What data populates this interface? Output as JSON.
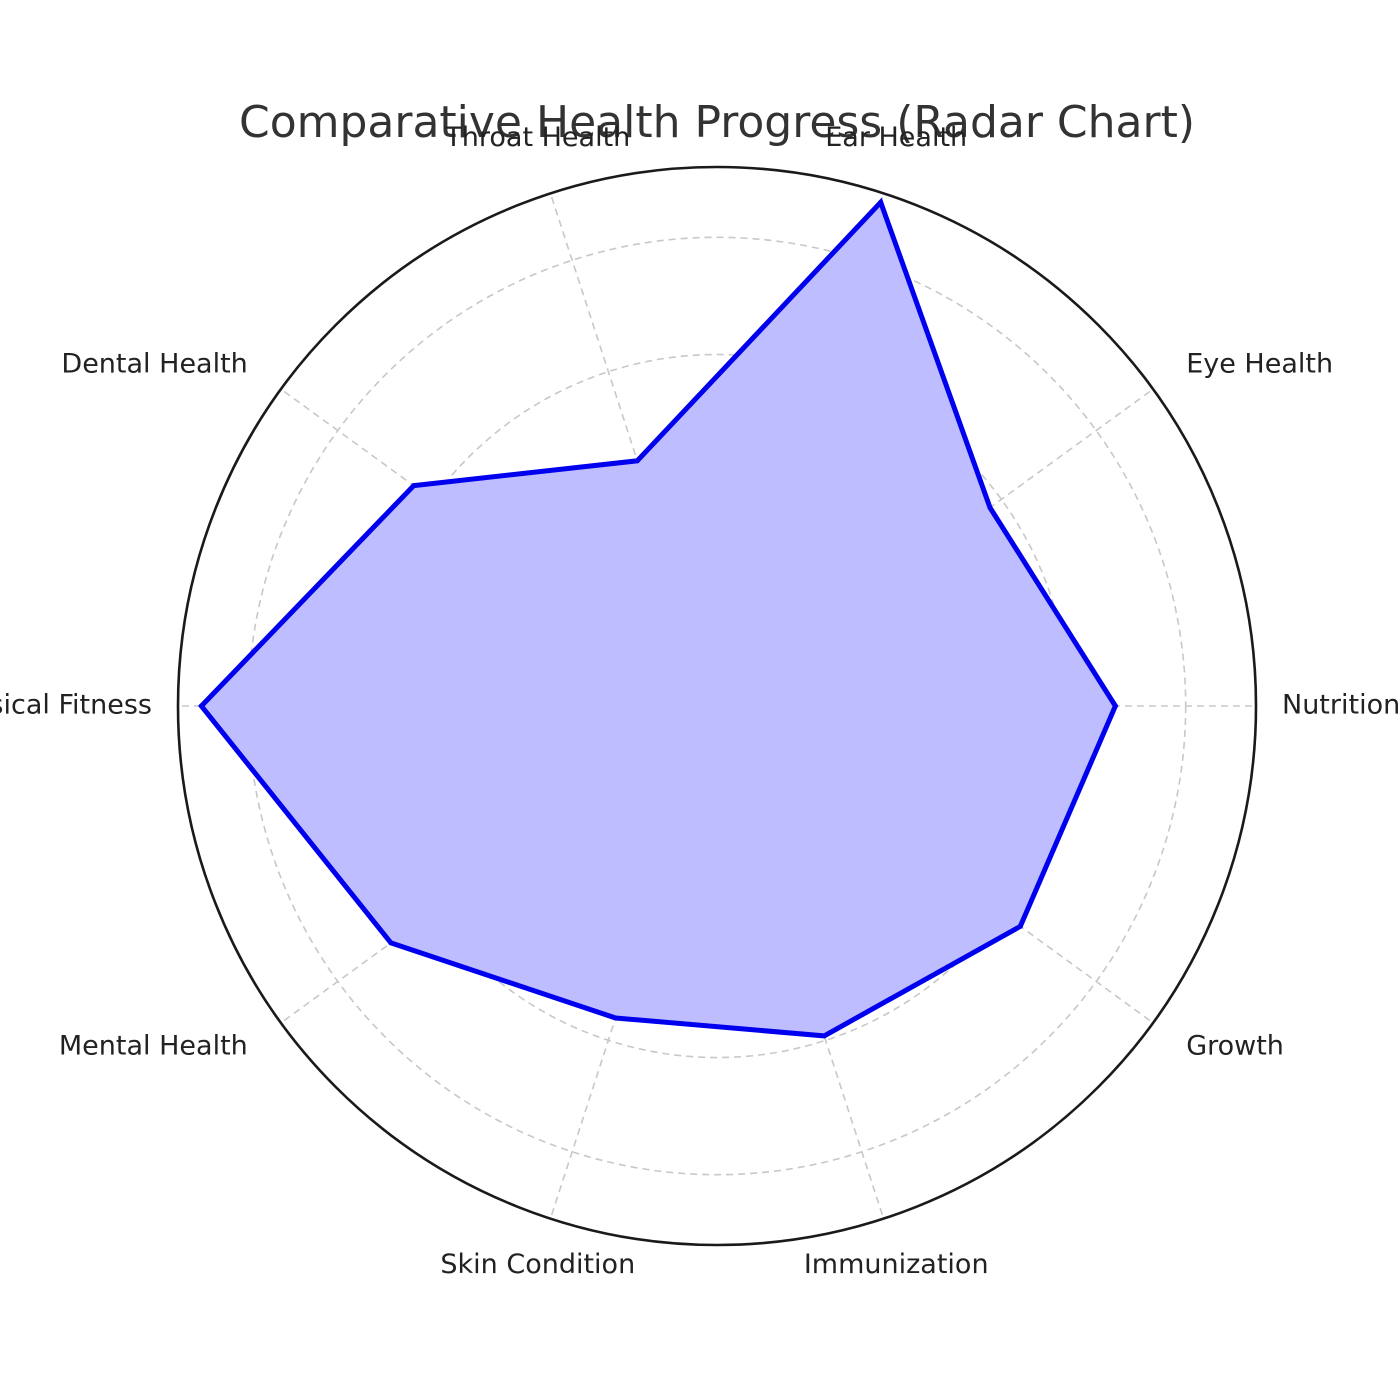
{
  "chart_data": {
    "type": "radar",
    "title": "Comparative Health Progress (Radar Chart)",
    "categories": [
      "Nutrition",
      "Eye Health",
      "Ear Health",
      "Throat Health",
      "Dental Health",
      "Physical Fitness",
      "Mental Health",
      "Skin Condition",
      "Immunization",
      "Growth"
    ],
    "series": [
      {
        "values": [
          85,
          72,
          113,
          55,
          80,
          110,
          86,
          70,
          74,
          80
        ]
      }
    ],
    "rmax": 115,
    "ring_step": 25,
    "grid": true,
    "colors": {
      "line": "#0000ee",
      "fill": "#bdbdff",
      "outer_ring": "#1a1a1a",
      "grid": "#c8c8c8",
      "title": "#333333",
      "label": "#222222"
    }
  }
}
